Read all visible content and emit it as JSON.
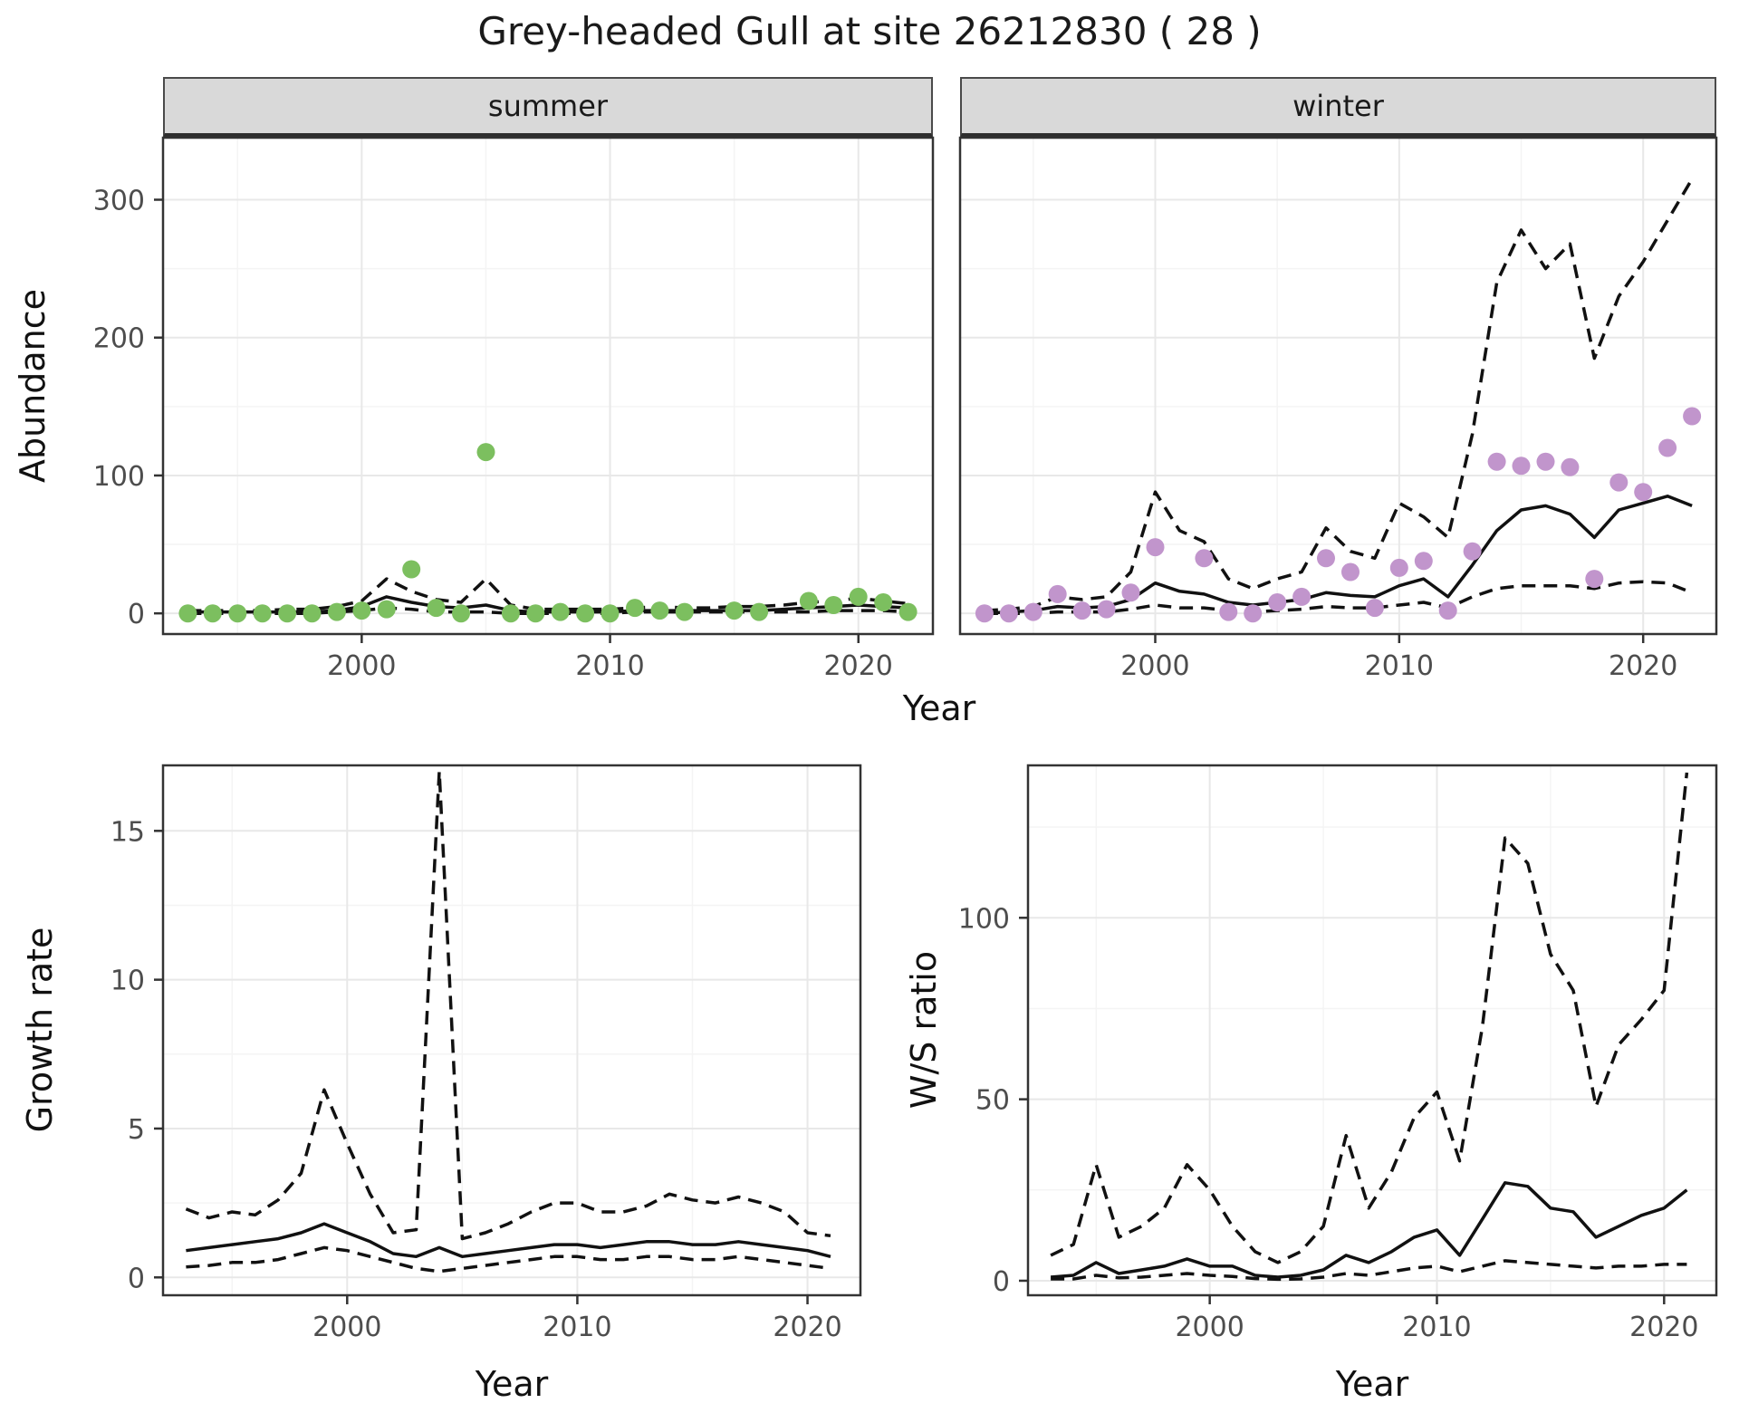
{
  "title": "Grey-headed Gull at site 26212830 ( 28 )",
  "facets": {
    "summer": "summer",
    "winter": "winter"
  },
  "axes": {
    "abundance_label": "Abundance",
    "year_label": "Year",
    "growth_label": "Growth rate",
    "ws_label": "W/S ratio"
  },
  "colors": {
    "summer_point": "#7CBF5F",
    "winter_point": "#C195CC",
    "line": "#111111",
    "grid_major": "#E8E8E8",
    "grid_minor": "#F4F4F4",
    "panel_border": "#333333",
    "strip_bg": "#D9D9D9",
    "tick_text": "#4d4d4d"
  },
  "chart_data": [
    {
      "id": "abundance-summer",
      "type": "scatter",
      "facet": "summer",
      "xlabel": "Year",
      "ylabel": "Abundance",
      "xlim": [
        1992,
        2023
      ],
      "ylim": [
        -15,
        345
      ],
      "x_ticks": [
        2000,
        2010,
        2020
      ],
      "y_ticks": [
        0,
        100,
        200,
        300
      ],
      "grid": true,
      "series": [
        {
          "name": "lower_ci",
          "type": "line",
          "style": "dashed",
          "x": [
            1993,
            1994,
            1995,
            1996,
            1997,
            1998,
            1999,
            2000,
            2001,
            2002,
            2003,
            2004,
            2005,
            2006,
            2007,
            2008,
            2009,
            2010,
            2011,
            2012,
            2013,
            2014,
            2015,
            2016,
            2017,
            2018,
            2019,
            2020,
            2021,
            2022
          ],
          "y": [
            0,
            0,
            0,
            0,
            0,
            0,
            1,
            2,
            4,
            3,
            1,
            1,
            1,
            0,
            0,
            0,
            0,
            0,
            1,
            1,
            1,
            1,
            1,
            1,
            1,
            1,
            2,
            2,
            2,
            1
          ]
        },
        {
          "name": "upper_ci",
          "type": "line",
          "style": "dashed",
          "x": [
            1993,
            1994,
            1995,
            1996,
            1997,
            1998,
            1999,
            2000,
            2001,
            2002,
            2003,
            2004,
            2005,
            2006,
            2007,
            2008,
            2009,
            2010,
            2011,
            2012,
            2013,
            2014,
            2015,
            2016,
            2017,
            2018,
            2019,
            2020,
            2021,
            2022
          ],
          "y": [
            2,
            2,
            2,
            2,
            3,
            3,
            5,
            9,
            25,
            16,
            10,
            8,
            25,
            6,
            3,
            3,
            3,
            3,
            4,
            5,
            4,
            4,
            5,
            5,
            6,
            8,
            9,
            11,
            9,
            7
          ]
        },
        {
          "name": "fitted",
          "type": "line",
          "style": "solid",
          "x": [
            1993,
            1994,
            1995,
            1996,
            1997,
            1998,
            1999,
            2000,
            2001,
            2002,
            2003,
            2004,
            2005,
            2006,
            2007,
            2008,
            2009,
            2010,
            2011,
            2012,
            2013,
            2014,
            2015,
            2016,
            2017,
            2018,
            2019,
            2020,
            2021,
            2022
          ],
          "y": [
            1,
            1,
            1,
            1,
            1,
            1,
            2,
            5,
            12,
            8,
            5,
            4,
            6,
            2,
            1,
            1,
            1,
            1,
            2,
            2,
            2,
            2,
            2,
            2,
            3,
            4,
            5,
            6,
            5,
            4
          ]
        },
        {
          "name": "observed",
          "type": "point",
          "color": "#7CBF5F",
          "x": [
            1993,
            1994,
            1995,
            1996,
            1997,
            1998,
            1999,
            2000,
            2001,
            2002,
            2003,
            2004,
            2005,
            2006,
            2007,
            2008,
            2009,
            2010,
            2011,
            2012,
            2013,
            2015,
            2016,
            2018,
            2019,
            2020,
            2021,
            2022
          ],
          "y": [
            0,
            0,
            0,
            0,
            0,
            0,
            1,
            2,
            3,
            32,
            4,
            0,
            117,
            0,
            0,
            1,
            0,
            0,
            4,
            2,
            1,
            2,
            1,
            9,
            6,
            12,
            8,
            1
          ]
        }
      ]
    },
    {
      "id": "abundance-winter",
      "type": "scatter",
      "facet": "winter",
      "xlabel": "Year",
      "ylabel": "Abundance",
      "xlim": [
        1992,
        2023
      ],
      "ylim": [
        -15,
        345
      ],
      "x_ticks": [
        2000,
        2010,
        2020
      ],
      "y_ticks": [
        0,
        100,
        200,
        300
      ],
      "grid": true,
      "series": [
        {
          "name": "lower_ci",
          "type": "line",
          "style": "dashed",
          "x": [
            1993,
            1994,
            1995,
            1996,
            1997,
            1998,
            1999,
            2000,
            2001,
            2002,
            2003,
            2004,
            2005,
            2006,
            2007,
            2008,
            2009,
            2010,
            2011,
            2012,
            2013,
            2014,
            2015,
            2016,
            2017,
            2018,
            2019,
            2020,
            2021,
            2022
          ],
          "y": [
            0,
            0,
            0,
            1,
            1,
            1,
            3,
            6,
            4,
            4,
            2,
            1,
            2,
            3,
            5,
            4,
            4,
            6,
            8,
            4,
            12,
            18,
            20,
            20,
            20,
            18,
            22,
            23,
            22,
            15
          ]
        },
        {
          "name": "upper_ci",
          "type": "line",
          "style": "dashed",
          "x": [
            1993,
            1994,
            1995,
            1996,
            1997,
            1998,
            1999,
            2000,
            2001,
            2002,
            2003,
            2004,
            2005,
            2006,
            2007,
            2008,
            2009,
            2010,
            2011,
            2012,
            2013,
            2014,
            2015,
            2016,
            2017,
            2018,
            2019,
            2020,
            2021,
            2022
          ],
          "y": [
            2,
            3,
            5,
            12,
            10,
            12,
            30,
            88,
            60,
            52,
            25,
            18,
            25,
            30,
            62,
            45,
            40,
            80,
            70,
            55,
            130,
            240,
            278,
            250,
            268,
            185,
            230,
            255,
            285,
            315
          ]
        },
        {
          "name": "fitted",
          "type": "line",
          "style": "solid",
          "x": [
            1993,
            1994,
            1995,
            1996,
            1997,
            1998,
            1999,
            2000,
            2001,
            2002,
            2003,
            2004,
            2005,
            2006,
            2007,
            2008,
            2009,
            2010,
            2011,
            2012,
            2013,
            2014,
            2015,
            2016,
            2017,
            2018,
            2019,
            2020,
            2021,
            2022
          ],
          "y": [
            0,
            1,
            2,
            5,
            4,
            5,
            10,
            22,
            16,
            14,
            8,
            6,
            8,
            10,
            15,
            13,
            12,
            20,
            25,
            12,
            35,
            60,
            75,
            78,
            72,
            55,
            75,
            80,
            85,
            78
          ]
        },
        {
          "name": "observed",
          "type": "point",
          "color": "#C195CC",
          "x": [
            1993,
            1994,
            1995,
            1996,
            1997,
            1998,
            1999,
            2000,
            2002,
            2003,
            2004,
            2005,
            2006,
            2007,
            2008,
            2009,
            2010,
            2011,
            2012,
            2013,
            2014,
            2015,
            2016,
            2017,
            2018,
            2019,
            2020,
            2021,
            2022
          ],
          "y": [
            0,
            0,
            1,
            14,
            2,
            3,
            15,
            48,
            40,
            1,
            0,
            8,
            12,
            40,
            30,
            4,
            33,
            38,
            2,
            45,
            110,
            107,
            110,
            106,
            25,
            95,
            88,
            120,
            143
          ]
        }
      ]
    },
    {
      "id": "growth-rate",
      "type": "line",
      "xlabel": "Year",
      "ylabel": "Growth rate",
      "xlim": [
        1992,
        2022.3
      ],
      "ylim": [
        -0.6,
        17.2
      ],
      "x_ticks": [
        2000,
        2010,
        2020
      ],
      "y_ticks": [
        0,
        5,
        10,
        15
      ],
      "grid": true,
      "series": [
        {
          "name": "lower_ci",
          "type": "line",
          "style": "dashed",
          "x": [
            1993,
            1994,
            1995,
            1996,
            1997,
            1998,
            1999,
            2000,
            2001,
            2002,
            2003,
            2004,
            2005,
            2006,
            2007,
            2008,
            2009,
            2010,
            2011,
            2012,
            2013,
            2014,
            2015,
            2016,
            2017,
            2018,
            2019,
            2020,
            2021
          ],
          "y": [
            0.35,
            0.4,
            0.5,
            0.5,
            0.6,
            0.8,
            1.0,
            0.9,
            0.7,
            0.5,
            0.3,
            0.2,
            0.3,
            0.4,
            0.5,
            0.6,
            0.7,
            0.7,
            0.6,
            0.6,
            0.7,
            0.7,
            0.6,
            0.6,
            0.7,
            0.6,
            0.5,
            0.4,
            0.3
          ]
        },
        {
          "name": "upper_ci",
          "type": "line",
          "style": "dashed",
          "x": [
            1993,
            1994,
            1995,
            1996,
            1997,
            1998,
            1999,
            2000,
            2001,
            2002,
            2003,
            2004,
            2005,
            2006,
            2007,
            2008,
            2009,
            2010,
            2011,
            2012,
            2013,
            2014,
            2015,
            2016,
            2017,
            2018,
            2019,
            2020,
            2021
          ],
          "y": [
            2.3,
            2.0,
            2.2,
            2.1,
            2.6,
            3.5,
            6.3,
            4.5,
            2.8,
            1.5,
            1.6,
            17.0,
            1.3,
            1.5,
            1.8,
            2.2,
            2.5,
            2.5,
            2.2,
            2.2,
            2.4,
            2.8,
            2.6,
            2.5,
            2.7,
            2.5,
            2.2,
            1.5,
            1.4
          ]
        },
        {
          "name": "fitted",
          "type": "line",
          "style": "solid",
          "x": [
            1993,
            1994,
            1995,
            1996,
            1997,
            1998,
            1999,
            2000,
            2001,
            2002,
            2003,
            2004,
            2005,
            2006,
            2007,
            2008,
            2009,
            2010,
            2011,
            2012,
            2013,
            2014,
            2015,
            2016,
            2017,
            2018,
            2019,
            2020,
            2021
          ],
          "y": [
            0.9,
            1.0,
            1.1,
            1.2,
            1.3,
            1.5,
            1.8,
            1.5,
            1.2,
            0.8,
            0.7,
            1.0,
            0.7,
            0.8,
            0.9,
            1.0,
            1.1,
            1.1,
            1.0,
            1.1,
            1.2,
            1.2,
            1.1,
            1.1,
            1.2,
            1.1,
            1.0,
            0.9,
            0.7
          ]
        }
      ]
    },
    {
      "id": "ws-ratio",
      "type": "line",
      "xlabel": "Year",
      "ylabel": "W/S ratio",
      "xlim": [
        1992,
        2022.3
      ],
      "ylim": [
        -4,
        142
      ],
      "x_ticks": [
        2000,
        2010,
        2020
      ],
      "y_ticks": [
        0,
        50,
        100
      ],
      "grid": true,
      "series": [
        {
          "name": "lower_ci",
          "type": "line",
          "style": "dashed",
          "x": [
            1993,
            1994,
            1995,
            1996,
            1997,
            1998,
            1999,
            2000,
            2001,
            2002,
            2003,
            2004,
            2005,
            2006,
            2007,
            2008,
            2009,
            2010,
            2011,
            2012,
            2013,
            2014,
            2015,
            2016,
            2017,
            2018,
            2019,
            2020,
            2021
          ],
          "y": [
            0.5,
            0.5,
            1.5,
            0.8,
            1,
            1.5,
            2,
            1.5,
            1.2,
            0.6,
            0.4,
            0.5,
            1,
            2,
            1.5,
            2.5,
            3.5,
            4,
            2.5,
            4,
            5.5,
            5,
            4.5,
            4,
            3.5,
            4,
            4,
            4.5,
            4.5
          ]
        },
        {
          "name": "upper_ci",
          "type": "line",
          "style": "dashed",
          "x": [
            1993,
            1994,
            1995,
            1996,
            1997,
            1998,
            1999,
            2000,
            2001,
            2002,
            2003,
            2004,
            2005,
            2006,
            2007,
            2008,
            2009,
            2010,
            2011,
            2012,
            2013,
            2014,
            2015,
            2016,
            2017,
            2018,
            2019,
            2020,
            2021
          ],
          "y": [
            7,
            10,
            32,
            12,
            15,
            20,
            32,
            25,
            15,
            8,
            5,
            8,
            15,
            40,
            20,
            30,
            45,
            52,
            33,
            70,
            122,
            115,
            90,
            80,
            48,
            65,
            72,
            80,
            140
          ]
        },
        {
          "name": "fitted",
          "type": "line",
          "style": "solid",
          "x": [
            1993,
            1994,
            1995,
            1996,
            1997,
            1998,
            1999,
            2000,
            2001,
            2002,
            2003,
            2004,
            2005,
            2006,
            2007,
            2008,
            2009,
            2010,
            2011,
            2012,
            2013,
            2014,
            2015,
            2016,
            2017,
            2018,
            2019,
            2020,
            2021
          ],
          "y": [
            1,
            1.5,
            5,
            2,
            3,
            4,
            6,
            4,
            4,
            1.5,
            1,
            1.5,
            3,
            7,
            5,
            8,
            12,
            14,
            7,
            17,
            27,
            26,
            20,
            19,
            12,
            15,
            18,
            20,
            25
          ]
        }
      ]
    }
  ]
}
